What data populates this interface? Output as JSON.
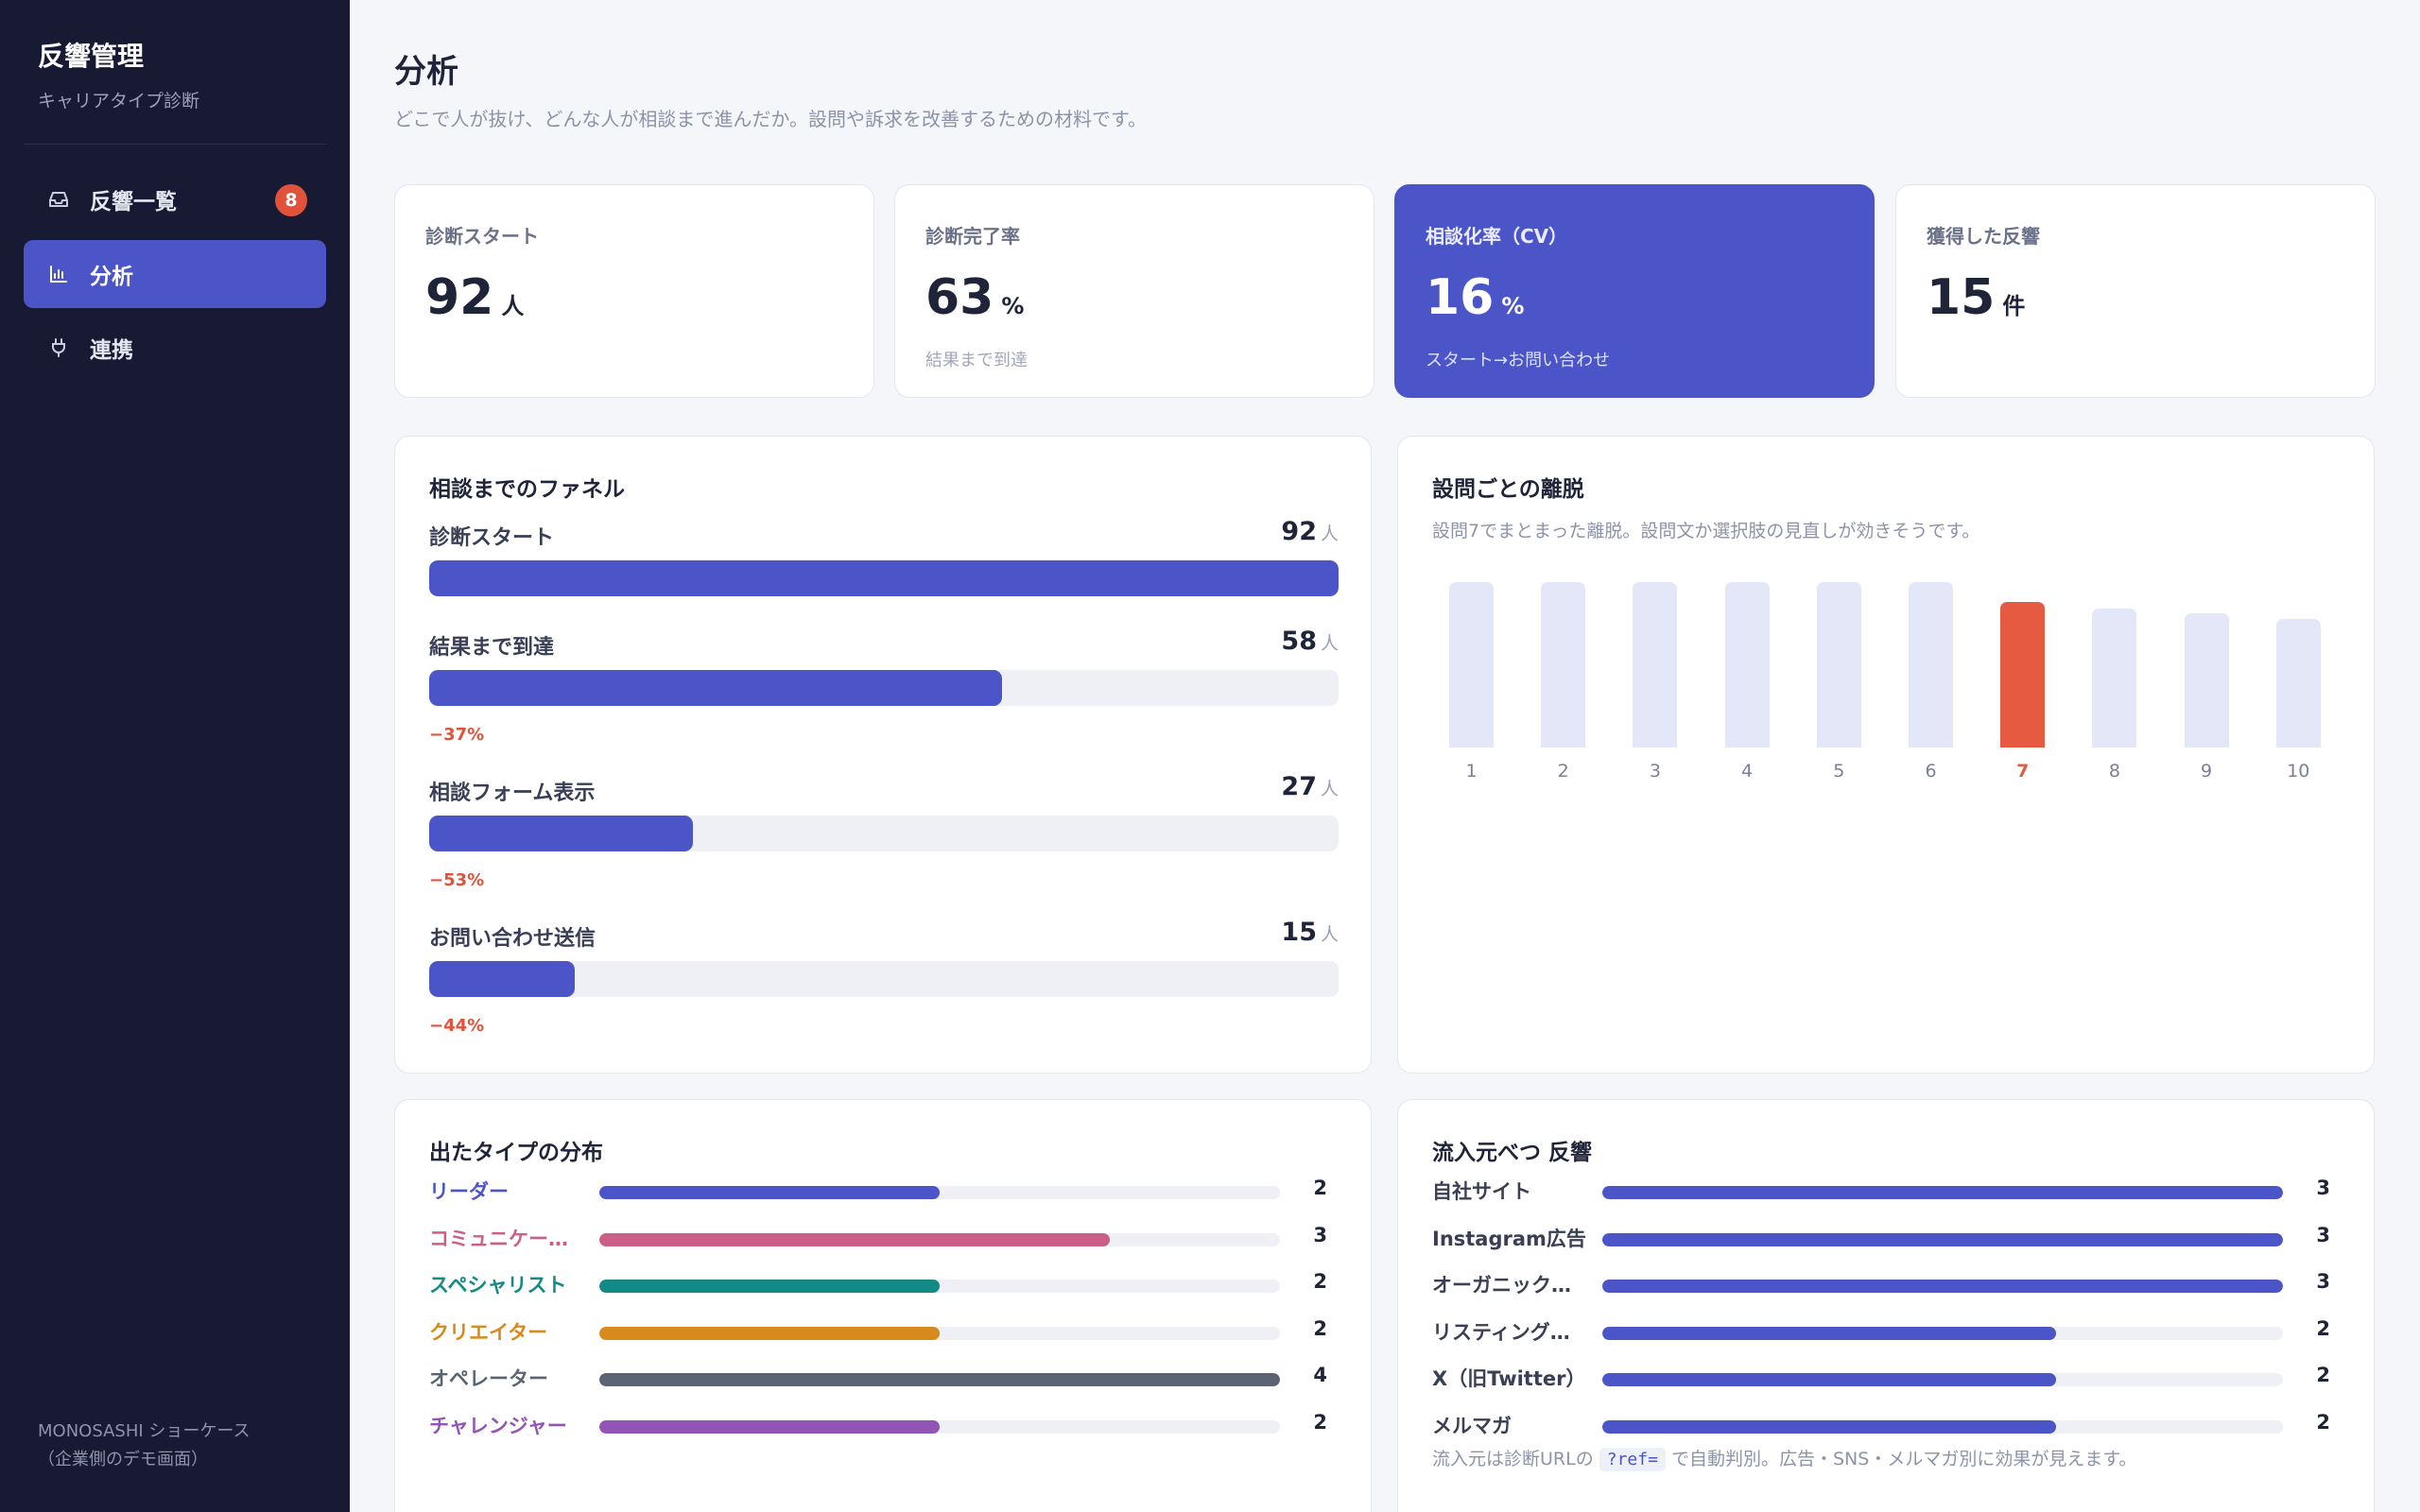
{
  "sidebar": {
    "title": "反響管理",
    "subtitle": "キャリアタイプ診断",
    "items": [
      {
        "label": "反響一覧",
        "icon": "inbox-icon",
        "badge": "8",
        "active": false
      },
      {
        "label": "分析",
        "icon": "bar-chart-icon",
        "active": true
      },
      {
        "label": "連携",
        "icon": "plug-icon",
        "active": false
      }
    ],
    "footer_line1": "MONOSASHI ショーケース",
    "footer_line2": "（企業側のデモ画面）"
  },
  "header": {
    "title": "分析",
    "description": "どこで人が抜け、どんな人が相談まで進んだか。設問や訴求を改善するための材料です。"
  },
  "kpis": [
    {
      "label": "診断スタート",
      "value": "92",
      "unit": "人",
      "note": ""
    },
    {
      "label": "診断完了率",
      "value": "63",
      "unit": "%",
      "note": "結果まで到達"
    },
    {
      "label": "相談化率（CV）",
      "value": "16",
      "unit": "%",
      "note": "スタート→お問い合わせ"
    },
    {
      "label": "獲得した反響",
      "value": "15",
      "unit": "件",
      "note": ""
    }
  ],
  "funnel": {
    "title": "相談までのファネル",
    "unit": "人",
    "steps": [
      {
        "label": "診断スタート",
        "count": "92",
        "fraction": 1.0,
        "drop": ""
      },
      {
        "label": "結果まで到達",
        "count": "58",
        "fraction": 0.63,
        "drop": "−37%"
      },
      {
        "label": "相談フォーム表示",
        "count": "27",
        "fraction": 0.29,
        "drop": "−53%"
      },
      {
        "label": "お問い合わせ送信",
        "count": "15",
        "fraction": 0.16,
        "drop": "−44%"
      }
    ]
  },
  "dropoff": {
    "title": "設問ごとの離脱",
    "subtitle": "設問7でまとまった離脱。設問文か選択肢の見直しが効きそうです。",
    "chart_data": {
      "type": "bar",
      "categories": [
        "1",
        "2",
        "3",
        "4",
        "5",
        "6",
        "7",
        "8",
        "9",
        "10"
      ],
      "values": [
        100,
        100,
        100,
        100,
        100,
        100,
        88,
        84,
        81,
        78
      ],
      "highlight": "7",
      "colors": {
        "normal": "#e3e7f7",
        "highlight": "#e65a42"
      }
    }
  },
  "types": {
    "title": "出たタイプの分布",
    "max": 4,
    "rows": [
      {
        "label": "リーダー",
        "value": "2",
        "color": "#4b55c8"
      },
      {
        "label": "コミュニケー…",
        "value": "3",
        "color": "#cc5f8a"
      },
      {
        "label": "スペシャリスト",
        "value": "2",
        "color": "#138a85"
      },
      {
        "label": "クリエイター",
        "value": "2",
        "color": "#d98a1c"
      },
      {
        "label": "オペレーター",
        "value": "4",
        "color": "#5a6472"
      },
      {
        "label": "チャレンジャー",
        "value": "2",
        "color": "#9355b5"
      }
    ]
  },
  "sources": {
    "title": "流入元べつ 反響",
    "max": 3,
    "bar_color": "#4b55c8",
    "rows": [
      {
        "label": "自社サイト",
        "value": "3"
      },
      {
        "label": "Instagram広告",
        "value": "3"
      },
      {
        "label": "オーガニック…",
        "value": "3"
      },
      {
        "label": "リスティング…",
        "value": "2"
      },
      {
        "label": "X（旧Twitter）",
        "value": "2"
      },
      {
        "label": "メルマガ",
        "value": "2"
      }
    ],
    "note_prefix": "流入元は診断URLの",
    "note_code": "?ref=",
    "note_suffix": "で自動判別。広告・SNS・メルマガ別に効果が見えます。"
  }
}
